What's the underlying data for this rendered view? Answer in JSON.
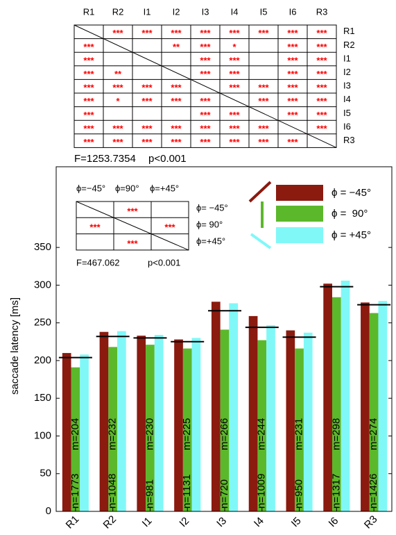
{
  "significance_matrix": {
    "columns": [
      "R1",
      "R2",
      "I1",
      "I2",
      "I3",
      "I4",
      "I5",
      "I6",
      "R3"
    ],
    "rows": [
      "R1",
      "R2",
      "I1",
      "I2",
      "I3",
      "I4",
      "I5",
      "I6",
      "R3"
    ],
    "cells": [
      [
        null,
        "***",
        "***",
        "***",
        "***",
        "***",
        "***",
        "***",
        "***"
      ],
      [
        "***",
        null,
        null,
        "**",
        "***",
        "*",
        null,
        "***",
        "***"
      ],
      [
        "***",
        null,
        null,
        null,
        "***",
        "***",
        null,
        "***",
        "***"
      ],
      [
        "***",
        "**",
        null,
        null,
        "***",
        "***",
        null,
        "***",
        "***"
      ],
      [
        "***",
        "***",
        "***",
        "***",
        null,
        "***",
        "***",
        "***",
        "***"
      ],
      [
        "***",
        "*",
        "***",
        "***",
        "***",
        null,
        "***",
        "***",
        "***"
      ],
      [
        "***",
        null,
        null,
        null,
        "***",
        "***",
        null,
        "***",
        "***"
      ],
      [
        "***",
        "***",
        "***",
        "***",
        "***",
        "***",
        "***",
        null,
        "***"
      ],
      [
        "***",
        "***",
        "***",
        "***",
        "***",
        "***",
        "***",
        "***",
        null
      ]
    ],
    "statistic": "F=1253.7354",
    "p": "p<0.001"
  },
  "chart_data": {
    "type": "bar",
    "ylabel": "saccade latency [ms]",
    "categories": [
      "R1",
      "R2",
      "I1",
      "I2",
      "I3",
      "I4",
      "I5",
      "I6",
      "R3"
    ],
    "series": [
      {
        "name": "ϕ = −45°",
        "color": "#8b1a0f",
        "values": [
          210,
          238,
          233,
          228,
          278,
          259,
          240,
          302,
          277
        ]
      },
      {
        "name": "ϕ =  90°",
        "color": "#5bb82a",
        "values": [
          191,
          218,
          221,
          216,
          241,
          227,
          216,
          284,
          263
        ]
      },
      {
        "name": "ϕ = +45°",
        "color": "#80f8f8",
        "values": [
          208,
          239,
          234,
          230,
          276,
          247,
          237,
          306,
          279
        ]
      }
    ],
    "means": {
      "values": [
        204,
        232,
        230,
        225,
        266,
        244,
        231,
        298,
        274
      ],
      "value_labels": [
        "m=204",
        "m=232",
        "m=230",
        "m=225",
        "m=266",
        "m=244",
        "m=231",
        "m=298",
        "m=274"
      ]
    },
    "sample_sizes": [
      "n=1773",
      "n=1048",
      "n=981",
      "n=1131",
      "n=720",
      "n=1009",
      "n=950",
      "n=1317",
      "n=1426"
    ],
    "ylim": [
      0,
      457
    ],
    "yticks": [
      0,
      50,
      100,
      150,
      200,
      250,
      300,
      350
    ],
    "inset": {
      "header": [
        "ϕ=−45°",
        "ϕ=90°",
        "ϕ=+45°"
      ],
      "rows": [
        "ϕ= −45°",
        "ϕ= 90°",
        "ϕ=+45°"
      ],
      "cells": [
        [
          null,
          "***",
          null
        ],
        [
          "***",
          null,
          "***"
        ],
        [
          null,
          "***",
          null
        ]
      ],
      "statistic": "F=467.062",
      "p": "p<0.001"
    }
  }
}
